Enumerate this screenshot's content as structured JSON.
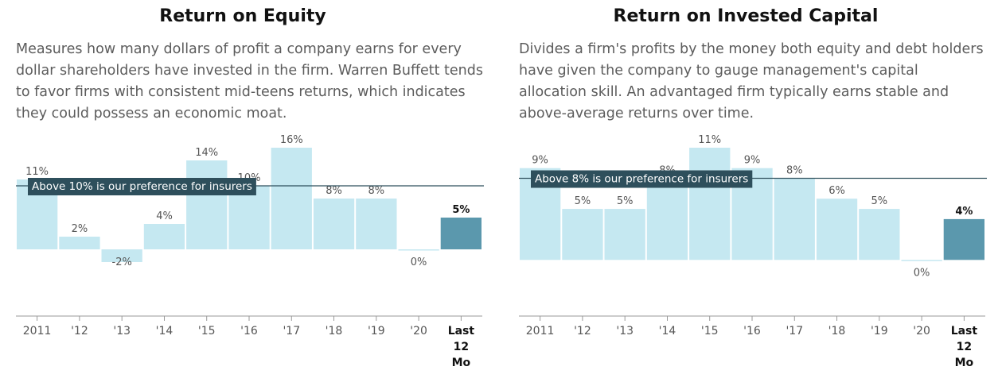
{
  "chart_data": [
    {
      "type": "bar",
      "title": "Return on Equity",
      "description": "Measures how many dollars of profit a company earns for every dollar shareholders have invested in the firm. Warren Buffett tends to favor firms with consistent mid-teens returns, which indicates they could possess an economic moat.",
      "categories": [
        "2011",
        "'12",
        "'13",
        "'14",
        "'15",
        "'16",
        "'17",
        "'18",
        "'19",
        "'20",
        "Last 12 Mo"
      ],
      "values": [
        11,
        2,
        -2,
        4,
        14,
        10,
        16,
        8,
        8,
        0,
        5
      ],
      "data_labels": [
        "11%",
        "2%",
        "-2%",
        "4%",
        "14%",
        "10%",
        "16%",
        "8%",
        "8%",
        "0%",
        "5%"
      ],
      "highlight_index": 10,
      "reference_line": {
        "value": 10,
        "label": "Above 10% is our preference for insurers"
      },
      "ylim": [
        -10.5,
        16
      ],
      "grid": false,
      "colors": {
        "bar": "#c5e8f1",
        "highlight": "#5b98ad",
        "reference": "#2e4f5c",
        "axis": "#9a9a9a"
      }
    },
    {
      "type": "bar",
      "title": "Return on Invested Capital",
      "description": "Divides a firm's profits by the money both equity and debt holders have given the company to gauge management's capital allocation skill. An advantaged firm typically earns stable and above-average returns over time.",
      "categories": [
        "2011",
        "'12",
        "'13",
        "'14",
        "'15",
        "'16",
        "'17",
        "'18",
        "'19",
        "'20",
        "Last 12 Mo"
      ],
      "values": [
        9,
        5,
        5,
        8,
        11,
        9,
        8,
        6,
        5,
        0,
        4
      ],
      "data_labels": [
        "9%",
        "5%",
        "5%",
        "8%",
        "11%",
        "9%",
        "8%",
        "6%",
        "5%",
        "0%",
        "4%"
      ],
      "highlight_index": 10,
      "reference_line": {
        "value": 8,
        "label": "Above 8% is our preference for insurers"
      },
      "ylim": [
        -5.5,
        11
      ],
      "grid": false,
      "colors": {
        "bar": "#c5e8f1",
        "highlight": "#5b98ad",
        "reference": "#2e4f5c",
        "axis": "#9a9a9a"
      }
    }
  ]
}
